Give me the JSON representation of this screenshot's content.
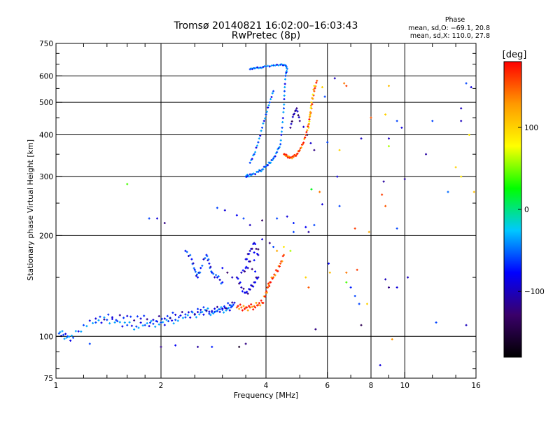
{
  "chart_data": {
    "type": "scatter",
    "title": "Tromsø 20140821 16:02:00–16:03:43",
    "subtitle": "RwPretec (8p)",
    "xlabel": "Frequency [MHz]",
    "ylabel": "Stationary phase Virtual Height [km]",
    "x_scale": "log",
    "y_scale": "log",
    "xlim": [
      1,
      16
    ],
    "ylim": [
      75,
      750
    ],
    "x_ticks": [
      "1",
      "2",
      "4",
      "6",
      "8",
      "10",
      "16"
    ],
    "x_tick_values": [
      1,
      2,
      4,
      6,
      8,
      10,
      16
    ],
    "y_ticks": [
      "75",
      "100",
      "200",
      "300",
      "400",
      "500",
      "600",
      "750"
    ],
    "y_tick_values": [
      75,
      100,
      200,
      300,
      400,
      500,
      600,
      750
    ],
    "grid": true,
    "stats": {
      "heading": "Phase",
      "o_mode": "mean, sd,O: −69.1, 20.8",
      "x_mode": "mean, sd,X: 110.0, 27.8"
    },
    "colorbar": {
      "label": "[deg]",
      "range": [
        -180,
        180
      ],
      "ticks": [
        "100",
        "0",
        "−100"
      ],
      "tick_values": [
        100,
        0,
        -100
      ],
      "colors": [
        "#000000",
        "#3a006a",
        "#0000ff",
        "#00c8ff",
        "#00ff00",
        "#ffff00",
        "#ff9900",
        "#ff0000"
      ]
    },
    "traces": [
      {
        "name": "",
        "phase": -60,
        "points": [
          [
            1.02,
            102
          ],
          [
            1.05,
            101
          ],
          [
            1.08,
            100
          ],
          [
            1.12,
            99
          ],
          [
            1.2,
            108
          ],
          [
            1.3,
            110
          ],
          [
            1.4,
            112
          ],
          [
            1.5,
            111
          ],
          [
            1.6,
            108
          ],
          [
            1.7,
            107
          ],
          [
            1.8,
            108
          ],
          [
            1.9,
            109
          ],
          [
            2.0,
            110
          ],
          [
            2.1,
            111
          ],
          [
            2.2,
            112
          ],
          [
            2.35,
            114
          ],
          [
            2.5,
            116
          ],
          [
            2.6,
            118
          ],
          [
            2.7,
            119
          ],
          [
            2.8,
            118
          ],
          [
            2.9,
            119
          ],
          [
            3.0,
            120
          ],
          [
            3.1,
            121
          ],
          [
            3.2,
            123
          ]
        ]
      },
      {
        "name": "",
        "phase": -90,
        "points": [
          [
            1.3,
            113
          ],
          [
            1.45,
            114
          ],
          [
            1.6,
            115
          ],
          [
            1.75,
            113
          ],
          [
            1.9,
            112
          ],
          [
            2.05,
            113
          ],
          [
            2.2,
            116
          ],
          [
            2.4,
            118
          ],
          [
            2.6,
            120
          ],
          [
            2.8,
            119
          ],
          [
            3.0,
            121
          ],
          [
            3.15,
            124
          ],
          [
            3.25,
            126
          ]
        ]
      },
      {
        "name": "",
        "phase": -75,
        "points": [
          [
            2.35,
            180
          ],
          [
            2.45,
            170
          ],
          [
            2.5,
            158
          ],
          [
            2.55,
            150
          ],
          [
            2.6,
            160
          ],
          [
            2.7,
            175
          ],
          [
            2.75,
            165
          ],
          [
            2.8,
            155
          ],
          [
            2.9,
            150
          ],
          [
            3.0,
            145
          ]
        ]
      },
      {
        "name": "",
        "phase": -100,
        "points": [
          [
            3.3,
            150
          ],
          [
            3.4,
            140
          ],
          [
            3.5,
            135
          ],
          [
            3.6,
            138
          ],
          [
            3.7,
            145
          ],
          [
            3.8,
            150
          ],
          [
            3.5,
            170
          ],
          [
            3.6,
            180
          ],
          [
            3.7,
            190
          ],
          [
            3.8,
            175
          ],
          [
            3.4,
            155
          ],
          [
            3.55,
            160
          ]
        ]
      },
      {
        "name": "",
        "phase": 150,
        "points": [
          [
            3.3,
            122
          ],
          [
            3.4,
            122
          ],
          [
            3.5,
            122
          ],
          [
            3.6,
            122
          ],
          [
            3.7,
            123
          ],
          [
            3.8,
            124
          ],
          [
            3.9,
            126
          ],
          [
            4.0,
            135
          ],
          [
            4.05,
            140
          ],
          [
            4.1,
            145
          ],
          [
            4.2,
            150
          ],
          [
            4.3,
            157
          ],
          [
            4.4,
            165
          ],
          [
            4.5,
            175
          ]
        ]
      },
      {
        "name": "",
        "phase": -60,
        "points": [
          [
            3.5,
            300
          ],
          [
            3.55,
            302
          ],
          [
            3.65,
            305
          ],
          [
            3.8,
            310
          ],
          [
            3.9,
            315
          ],
          [
            4.0,
            322
          ],
          [
            4.1,
            330
          ],
          [
            4.2,
            340
          ],
          [
            4.3,
            355
          ],
          [
            4.4,
            375
          ],
          [
            4.45,
            420
          ],
          [
            4.5,
            480
          ],
          [
            4.52,
            540
          ],
          [
            4.55,
            600
          ],
          [
            4.6,
            630
          ],
          [
            4.55,
            645
          ],
          [
            4.4,
            648
          ],
          [
            4.2,
            645
          ],
          [
            4.0,
            640
          ],
          [
            3.85,
            635
          ],
          [
            3.7,
            632
          ],
          [
            3.6,
            628
          ]
        ]
      },
      {
        "name": "",
        "phase": -60,
        "points": [
          [
            3.6,
            330
          ],
          [
            3.7,
            350
          ],
          [
            3.8,
            380
          ],
          [
            3.9,
            420
          ],
          [
            4.0,
            460
          ],
          [
            4.1,
            500
          ],
          [
            4.2,
            540
          ]
        ]
      },
      {
        "name": "",
        "phase": 150,
        "points": [
          [
            4.5,
            350
          ],
          [
            4.6,
            345
          ],
          [
            4.7,
            342
          ],
          [
            4.8,
            344
          ],
          [
            4.9,
            350
          ],
          [
            5.0,
            360
          ],
          [
            5.1,
            375
          ],
          [
            5.2,
            400
          ],
          [
            5.3,
            430
          ],
          [
            5.4,
            480
          ],
          [
            5.5,
            540
          ],
          [
            5.6,
            580
          ]
        ]
      },
      {
        "name": "",
        "phase": 100,
        "points": [
          [
            5.3,
            420
          ],
          [
            5.35,
            460
          ],
          [
            5.4,
            500
          ],
          [
            5.5,
            560
          ]
        ]
      },
      {
        "name": "",
        "phase": -120,
        "points": [
          [
            4.7,
            420
          ],
          [
            4.8,
            460
          ],
          [
            4.9,
            480
          ],
          [
            5.0,
            440
          ],
          [
            5.5,
            360
          ]
        ]
      }
    ],
    "scatter": [
      [
        1.6,
        285,
        40
      ],
      [
        1.85,
        225,
        -60
      ],
      [
        1.95,
        225,
        -90
      ],
      [
        2.05,
        218,
        -120
      ],
      [
        2.9,
        242,
        -60
      ],
      [
        3.05,
        238,
        -90
      ],
      [
        3.3,
        230,
        -80
      ],
      [
        3.45,
        225,
        -60
      ],
      [
        3.6,
        215,
        -100
      ],
      [
        3.9,
        222,
        -130
      ],
      [
        4.3,
        225,
        -60
      ],
      [
        4.6,
        228,
        -90
      ],
      [
        4.8,
        218,
        -70
      ],
      [
        5.2,
        212,
        -80
      ],
      [
        5.3,
        205,
        -110
      ],
      [
        5.5,
        215,
        -60
      ],
      [
        5.8,
        248,
        -90
      ],
      [
        5.7,
        270,
        140
      ],
      [
        5.4,
        275,
        20
      ],
      [
        6.5,
        245,
        -60
      ],
      [
        6.4,
        300,
        -90
      ],
      [
        7.2,
        210,
        160
      ],
      [
        7.9,
        205,
        120
      ],
      [
        8.6,
        265,
        160
      ],
      [
        8.8,
        245,
        150
      ],
      [
        9.5,
        210,
        -60
      ],
      [
        10.0,
        295,
        -110
      ],
      [
        11.5,
        350,
        -110
      ],
      [
        13.3,
        270,
        -50
      ],
      [
        15.8,
        270,
        110
      ],
      [
        14.0,
        320,
        100
      ],
      [
        14.5,
        300,
        90
      ],
      [
        6.0,
        380,
        -60
      ],
      [
        6.5,
        360,
        100
      ],
      [
        7.5,
        390,
        -100
      ],
      [
        8.0,
        450,
        150
      ],
      [
        8.8,
        460,
        100
      ],
      [
        9.0,
        390,
        -100
      ],
      [
        9.0,
        370,
        60
      ],
      [
        9.5,
        440,
        -60
      ],
      [
        9.8,
        420,
        -90
      ],
      [
        12.0,
        440,
        -60
      ],
      [
        14.5,
        440,
        -100
      ],
      [
        15.3,
        400,
        90
      ],
      [
        15.0,
        570,
        -60
      ],
      [
        15.5,
        555,
        -90
      ],
      [
        14.5,
        480,
        -100
      ],
      [
        9.0,
        560,
        110
      ],
      [
        8.7,
        290,
        -110
      ],
      [
        6.8,
        560,
        160
      ],
      [
        6.3,
        590,
        -100
      ],
      [
        6.7,
        570,
        140
      ],
      [
        5.8,
        555,
        100
      ],
      [
        5.9,
        520,
        -60
      ],
      [
        5.2,
        150,
        100
      ],
      [
        5.3,
        140,
        150
      ],
      [
        5.55,
        105,
        -120
      ],
      [
        6.05,
        165,
        -80
      ],
      [
        6.1,
        155,
        110
      ],
      [
        6.8,
        155,
        140
      ],
      [
        6.8,
        145,
        40
      ],
      [
        7.0,
        140,
        -70
      ],
      [
        7.2,
        132,
        -60
      ],
      [
        7.4,
        125,
        -60
      ],
      [
        8.8,
        148,
        -100
      ],
      [
        9.0,
        140,
        -120
      ],
      [
        9.5,
        140,
        -90
      ],
      [
        10.2,
        150,
        -100
      ],
      [
        12.3,
        110,
        -60
      ],
      [
        15.0,
        108,
        -100
      ],
      [
        9.2,
        98,
        130
      ],
      [
        8.5,
        82,
        -90
      ],
      [
        7.5,
        108,
        -140
      ],
      [
        7.3,
        158,
        160
      ],
      [
        7.8,
        125,
        100
      ],
      [
        2.0,
        93,
        -120
      ],
      [
        2.2,
        94,
        -80
      ],
      [
        2.55,
        93,
        -110
      ],
      [
        2.8,
        93,
        -70
      ],
      [
        3.35,
        93,
        -160
      ],
      [
        3.5,
        95,
        -120
      ],
      [
        1.25,
        95,
        -60
      ],
      [
        3.0,
        160,
        -80
      ],
      [
        3.1,
        155,
        -130
      ],
      [
        3.2,
        150,
        -100
      ],
      [
        4.1,
        190,
        -120
      ],
      [
        4.2,
        185,
        -60
      ],
      [
        4.3,
        180,
        120
      ],
      [
        4.5,
        185,
        90
      ],
      [
        4.7,
        180,
        60
      ],
      [
        4.8,
        205,
        -60
      ],
      [
        3.9,
        195,
        -90
      ],
      [
        3.8,
        182,
        -140
      ],
      [
        3.7,
        178,
        -80
      ]
    ]
  }
}
